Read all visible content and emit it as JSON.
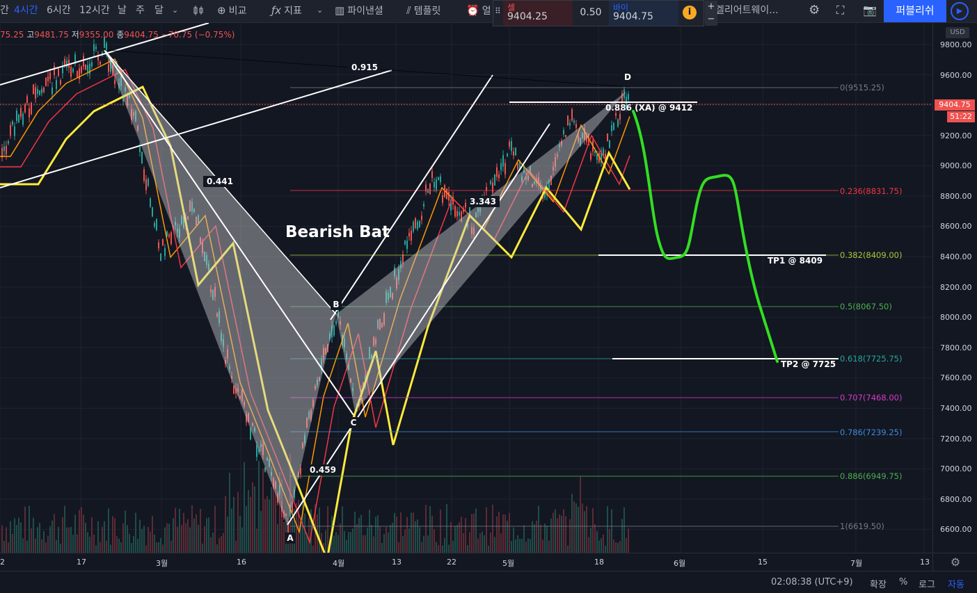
{
  "toolbar": {
    "timeframes": [
      "간",
      "4시간",
      "6시간",
      "12시간",
      "날",
      "주",
      "달"
    ],
    "active_timeframe": "4시간",
    "compare_label": "비교",
    "indicators_label": "지표",
    "financials_label": "파이낸셜",
    "templates_label": "템플릿",
    "alert_label": "얼",
    "gallery_label": "겔리어트웨이...",
    "publish_label": "퍼블리쉬"
  },
  "price_panel": {
    "sell_label": "셀",
    "sell_price": "9404.25",
    "spread": "0.50",
    "buy_label": "바이",
    "buy_price": "9404.75",
    "plus": "+",
    "minus": "−"
  },
  "legend": {
    "open": "75.25",
    "high_label": "고",
    "high": "9481.75",
    "low_label": "저",
    "low": "9355.00",
    "close_label": "종",
    "close": "9404.75",
    "change": "−70.75 (−0.75%)"
  },
  "price_axis": {
    "currency": "USD",
    "labels": [
      "9800.00",
      "9600.00",
      "9400.00",
      "9200.00",
      "9000.00",
      "8800.00",
      "8600.00",
      "8400.00",
      "8200.00",
      "8000.00",
      "7800.00",
      "7600.00",
      "7400.00",
      "7200.00",
      "7000.00",
      "6800.00",
      "6600.00"
    ],
    "current_price": "9404.75",
    "countdown": "51:22"
  },
  "time_axis": {
    "labels": [
      "2",
      "17",
      "3월",
      "16",
      "4월",
      "13",
      "22",
      "5월",
      "18",
      "6월",
      "15",
      "7월",
      "13"
    ]
  },
  "fib_levels": [
    {
      "label": "0(9515.25)",
      "color": "#787b86"
    },
    {
      "label": "0.236(8831.75)",
      "color": "#f23645"
    },
    {
      "label": "0.382(8409.00)",
      "color": "#a5c93a"
    },
    {
      "label": "0.5(8067.50)",
      "color": "#4caf50"
    },
    {
      "label": "0.618(7725.75)",
      "color": "#26a69a"
    },
    {
      "label": "0.707(7468.00)",
      "color": "#d63ac6"
    },
    {
      "label": "0.786(7239.25)",
      "color": "#3d8bd8"
    },
    {
      "label": "0.886(6949.75)",
      "color": "#4caf50"
    },
    {
      "label": "1(6619.50)",
      "color": "#787b86"
    }
  ],
  "annotations": {
    "pattern_title": "Bearish Bat",
    "d_target": "0.886 (XA) @ 9412",
    "tp1": "TP1 @ 8409",
    "tp2": "TP2 @ 7725",
    "ratio_xb": "0.441",
    "ratio_ac": "0.915",
    "ratio_bc": "0.459",
    "ratio_bd": "3.343",
    "point_a": "A",
    "point_b": "B",
    "point_c": "C",
    "point_d": "D"
  },
  "status_bar": {
    "time": "02:08:38 (UTC+9)",
    "expand": "확장",
    "percent": "%",
    "log": "로그",
    "auto": "자동"
  },
  "colors": {
    "background": "#131722",
    "accent": "#2962ff",
    "down": "#ef5350",
    "up": "#26a69a",
    "projection": "#33dd22"
  }
}
